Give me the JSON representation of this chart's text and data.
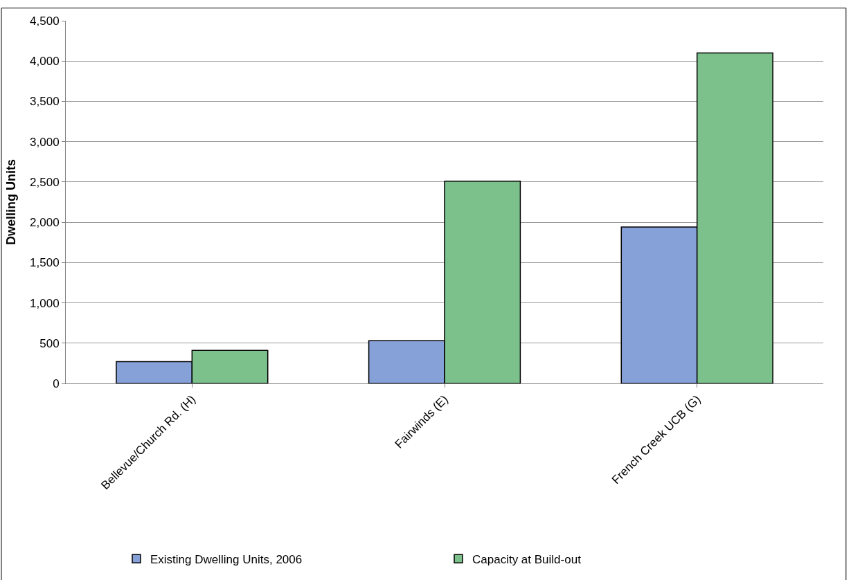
{
  "chart_data": {
    "type": "bar",
    "ylabel": "Dwelling Units",
    "categories": [
      "Bellevue/Church Rd. (H)",
      "Fairwinds (E)",
      "French Creek UCB (G)"
    ],
    "series": [
      {
        "name": "Existing Dwelling Units, 2006",
        "color": "#86a0d8",
        "values": [
          270,
          530,
          1940
        ]
      },
      {
        "name": "Capacity at Build-out",
        "color": "#7cc08c",
        "values": [
          410,
          2510,
          4100
        ]
      }
    ],
    "ylim": [
      0,
      4500
    ],
    "yticks": [
      {
        "value": 0,
        "label": "0"
      },
      {
        "value": 500,
        "label": "500"
      },
      {
        "value": 1000,
        "label": "1,000"
      },
      {
        "value": 1500,
        "label": "1,500"
      },
      {
        "value": 2000,
        "label": "2,000"
      },
      {
        "value": 2500,
        "label": "2,500"
      },
      {
        "value": 3000,
        "label": "3,000"
      },
      {
        "value": 3500,
        "label": "3,500"
      },
      {
        "value": 4000,
        "label": "4,000"
      },
      {
        "value": 4500,
        "label": "4,500"
      }
    ],
    "grid": "y",
    "legend": "bottom"
  }
}
